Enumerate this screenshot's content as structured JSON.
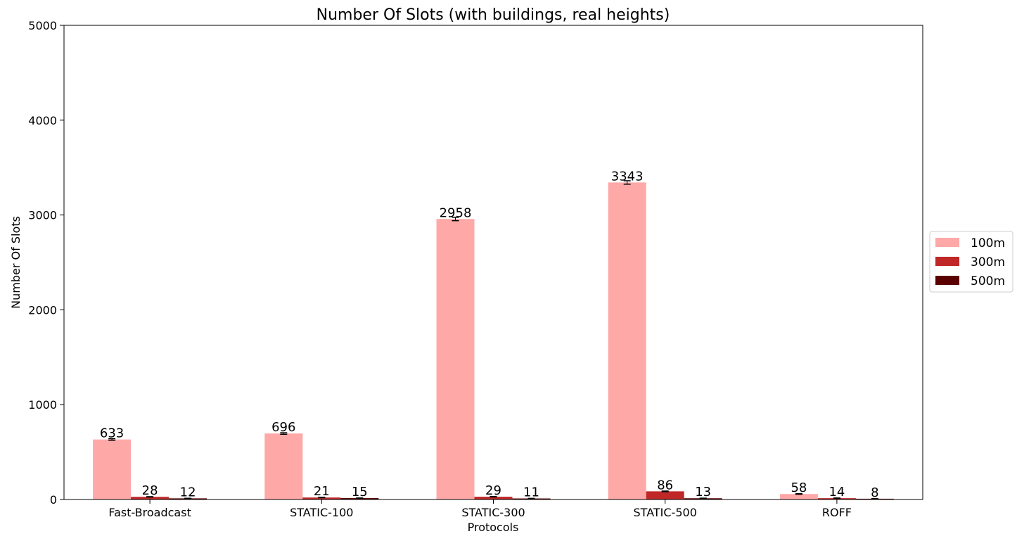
{
  "chart_data": {
    "type": "bar",
    "title": "Number Of Slots (with buildings, real heights)",
    "xlabel": "Protocols",
    "ylabel": "Number Of Slots",
    "ylim": [
      0,
      5000
    ],
    "yticks": [
      0,
      1000,
      2000,
      3000,
      4000,
      5000
    ],
    "categories": [
      "Fast-Broadcast",
      "STATIC-100",
      "STATIC-300",
      "STATIC-500",
      "ROFF"
    ],
    "series": [
      {
        "name": "100m",
        "color": "#ffa8a8",
        "values": [
          633,
          696,
          2958,
          3343,
          58
        ],
        "labels": [
          "633",
          "696",
          "2958",
          "3343",
          "58"
        ],
        "error": [
          8,
          8,
          18,
          18,
          3
        ]
      },
      {
        "name": "300m",
        "color": "#c02727",
        "values": [
          28,
          21,
          29,
          86,
          14
        ],
        "labels": [
          "28",
          "21",
          "29",
          "86",
          "14"
        ],
        "error": [
          2,
          2,
          2,
          3,
          2
        ]
      },
      {
        "name": "500m",
        "color": "#5b0000",
        "values": [
          12,
          15,
          11,
          13,
          8
        ],
        "labels": [
          "12",
          "15",
          "11",
          "13",
          "8"
        ],
        "error": [
          1,
          1,
          1,
          1,
          1
        ]
      }
    ],
    "grid": false,
    "legend_position": "right"
  }
}
